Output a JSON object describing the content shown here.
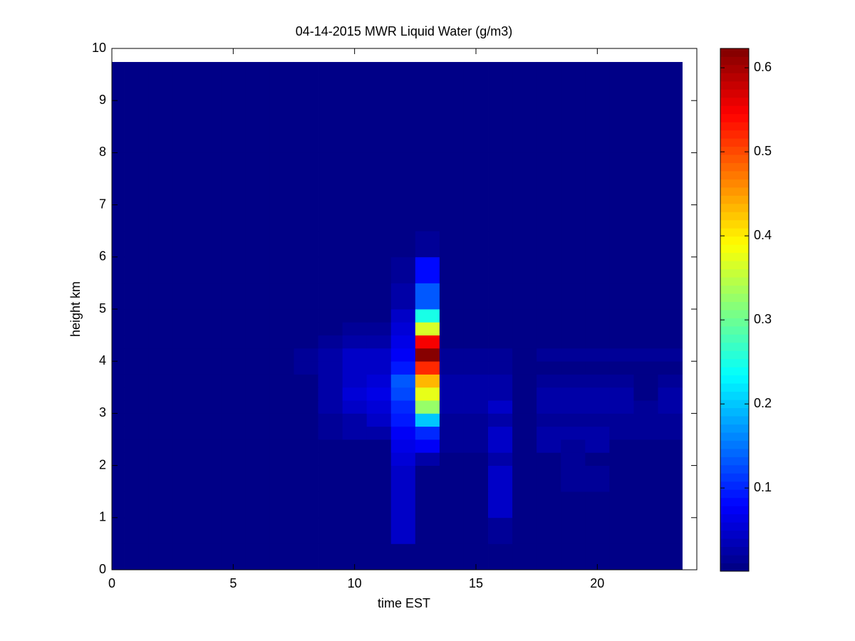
{
  "chart_data": {
    "type": "heatmap",
    "title": "04-14-2015 MWR Liquid Water (g/m3)",
    "x_label": "time EST",
    "y_label": "height km",
    "colormap": "jet",
    "clim": [
      0.001,
      0.623
    ],
    "colorbar_ticks": [
      0.1,
      0.2,
      0.3,
      0.4,
      0.5,
      0.6
    ],
    "xlim": [
      0,
      24.1
    ],
    "ylim": [
      0,
      10
    ],
    "xticks": [
      0,
      5,
      10,
      15,
      20
    ],
    "yticks": [
      0,
      1,
      2,
      3,
      4,
      5,
      6,
      7,
      8,
      9,
      10
    ],
    "x_edges": [
      0,
      0.5,
      1.5,
      2.5,
      3.5,
      4.5,
      5.5,
      6.5,
      7.5,
      8.5,
      9.5,
      10.5,
      11.5,
      12.5,
      13.5,
      14.5,
      15.5,
      16.5,
      17.5,
      18.5,
      19.5,
      20.5,
      21.5,
      22.5,
      23.5
    ],
    "y_edges": [
      0,
      0.5,
      1,
      1.5,
      2,
      2.25,
      2.5,
      2.75,
      3,
      3.25,
      3.5,
      3.75,
      4,
      4.25,
      4.5,
      4.75,
      5,
      5.5,
      6,
      6.5,
      8,
      9.74
    ],
    "z": [
      [
        0.001,
        0.001,
        0.001,
        0.001,
        0.001,
        0.001,
        0.001,
        0.001,
        0.001,
        0.001,
        0.001,
        0.001,
        0.001,
        0.001,
        0.001,
        0.001,
        0.001,
        0.001,
        0.001,
        0.001,
        0.001,
        0.001,
        0.001,
        0.001
      ],
      [
        0.001,
        0.001,
        0.001,
        0.001,
        0.001,
        0.001,
        0.001,
        0.001,
        0.001,
        0.001,
        0.001,
        0.001,
        0.04,
        0.001,
        0.001,
        0.001,
        0.02,
        0.001,
        0.001,
        0.001,
        0.001,
        0.001,
        0.001,
        0.001
      ],
      [
        0.001,
        0.001,
        0.001,
        0.001,
        0.001,
        0.001,
        0.001,
        0.001,
        0.001,
        0.001,
        0.001,
        0.001,
        0.04,
        0.001,
        0.001,
        0.001,
        0.04,
        0.001,
        0.001,
        0.001,
        0.001,
        0.001,
        0.001,
        0.001
      ],
      [
        0.001,
        0.001,
        0.001,
        0.001,
        0.001,
        0.001,
        0.001,
        0.001,
        0.001,
        0.001,
        0.001,
        0.001,
        0.04,
        0.001,
        0.001,
        0.001,
        0.04,
        0.001,
        0.001,
        0.02,
        0.02,
        0.001,
        0.001,
        0.001
      ],
      [
        0.001,
        0.001,
        0.001,
        0.001,
        0.001,
        0.001,
        0.001,
        0.001,
        0.001,
        0.001,
        0.001,
        0.001,
        0.05,
        0.03,
        0.001,
        0.001,
        0.03,
        0.001,
        0.001,
        0.02,
        0.001,
        0.001,
        0.001,
        0.001
      ],
      [
        0.001,
        0.001,
        0.001,
        0.001,
        0.001,
        0.001,
        0.001,
        0.001,
        0.001,
        0.001,
        0.001,
        0.001,
        0.06,
        0.07,
        0.02,
        0.02,
        0.04,
        0.001,
        0.03,
        0.02,
        0.03,
        0.001,
        0.001,
        0.001
      ],
      [
        0.001,
        0.001,
        0.001,
        0.001,
        0.001,
        0.001,
        0.001,
        0.001,
        0.001,
        0.02,
        0.03,
        0.03,
        0.07,
        0.1,
        0.02,
        0.02,
        0.04,
        0.001,
        0.03,
        0.03,
        0.03,
        0.02,
        0.02,
        0.02
      ],
      [
        0.001,
        0.001,
        0.001,
        0.001,
        0.001,
        0.001,
        0.001,
        0.001,
        0.001,
        0.02,
        0.03,
        0.04,
        0.09,
        0.2,
        0.02,
        0.02,
        0.03,
        0.001,
        0.02,
        0.02,
        0.02,
        0.02,
        0.02,
        0.02
      ],
      [
        0.001,
        0.001,
        0.001,
        0.001,
        0.001,
        0.001,
        0.001,
        0.001,
        0.001,
        0.03,
        0.04,
        0.05,
        0.1,
        0.33,
        0.03,
        0.03,
        0.04,
        0.001,
        0.03,
        0.03,
        0.03,
        0.03,
        0.02,
        0.03
      ],
      [
        0.001,
        0.001,
        0.001,
        0.001,
        0.001,
        0.001,
        0.001,
        0.001,
        0.001,
        0.03,
        0.05,
        0.06,
        0.12,
        0.38,
        0.03,
        0.03,
        0.03,
        0.001,
        0.03,
        0.03,
        0.03,
        0.03,
        0.001,
        0.03
      ],
      [
        0.001,
        0.001,
        0.001,
        0.001,
        0.001,
        0.001,
        0.001,
        0.001,
        0.001,
        0.03,
        0.04,
        0.05,
        0.13,
        0.43,
        0.03,
        0.03,
        0.03,
        0.001,
        0.02,
        0.02,
        0.02,
        0.02,
        0.001,
        0.02
      ],
      [
        0.001,
        0.001,
        0.001,
        0.001,
        0.001,
        0.001,
        0.001,
        0.001,
        0.02,
        0.03,
        0.04,
        0.04,
        0.09,
        0.52,
        0.02,
        0.02,
        0.02,
        0.001,
        0.001,
        0.001,
        0.001,
        0.001,
        0.001,
        0.001
      ],
      [
        0.001,
        0.001,
        0.001,
        0.001,
        0.001,
        0.001,
        0.001,
        0.001,
        0.02,
        0.03,
        0.04,
        0.04,
        0.07,
        0.62,
        0.02,
        0.02,
        0.02,
        0.001,
        0.015,
        0.015,
        0.015,
        0.015,
        0.015,
        0.015
      ],
      [
        0.001,
        0.001,
        0.001,
        0.001,
        0.001,
        0.001,
        0.001,
        0.001,
        0.001,
        0.02,
        0.03,
        0.03,
        0.06,
        0.55,
        0.001,
        0.001,
        0.001,
        0.001,
        0.001,
        0.001,
        0.001,
        0.001,
        0.001,
        0.001
      ],
      [
        0.001,
        0.001,
        0.001,
        0.001,
        0.001,
        0.001,
        0.001,
        0.001,
        0.001,
        0.001,
        0.02,
        0.02,
        0.05,
        0.37,
        0.001,
        0.001,
        0.001,
        0.001,
        0.001,
        0.001,
        0.001,
        0.001,
        0.001,
        0.001
      ],
      [
        0.001,
        0.001,
        0.001,
        0.001,
        0.001,
        0.001,
        0.001,
        0.001,
        0.001,
        0.001,
        0.001,
        0.001,
        0.04,
        0.25,
        0.001,
        0.001,
        0.001,
        0.001,
        0.001,
        0.001,
        0.001,
        0.001,
        0.001,
        0.001
      ],
      [
        0.001,
        0.001,
        0.001,
        0.001,
        0.001,
        0.001,
        0.001,
        0.001,
        0.001,
        0.001,
        0.001,
        0.001,
        0.03,
        0.13,
        0.001,
        0.001,
        0.001,
        0.001,
        0.001,
        0.001,
        0.001,
        0.001,
        0.001,
        0.001
      ],
      [
        0.001,
        0.001,
        0.001,
        0.001,
        0.001,
        0.001,
        0.001,
        0.001,
        0.001,
        0.001,
        0.001,
        0.001,
        0.02,
        0.08,
        0.001,
        0.001,
        0.001,
        0.001,
        0.001,
        0.001,
        0.001,
        0.001,
        0.001,
        0.001
      ],
      [
        0.001,
        0.001,
        0.001,
        0.001,
        0.001,
        0.001,
        0.001,
        0.001,
        0.001,
        0.001,
        0.001,
        0.001,
        0.001,
        0.02,
        0.001,
        0.001,
        0.001,
        0.001,
        0.001,
        0.001,
        0.001,
        0.001,
        0.001,
        0.001
      ],
      [
        0.001,
        0.001,
        0.001,
        0.001,
        0.001,
        0.001,
        0.001,
        0.001,
        0.001,
        0.001,
        0.001,
        0.001,
        0.001,
        0.001,
        0.001,
        0.001,
        0.001,
        0.001,
        0.001,
        0.001,
        0.001,
        0.001,
        0.001,
        0.001
      ],
      [
        0.001,
        0.001,
        0.001,
        0.001,
        0.001,
        0.001,
        0.001,
        0.001,
        0.001,
        0.001,
        0.001,
        0.001,
        0.001,
        0.001,
        0.001,
        0.001,
        0.001,
        0.001,
        0.001,
        0.001,
        0.001,
        0.001,
        0.001,
        0.001
      ]
    ]
  }
}
